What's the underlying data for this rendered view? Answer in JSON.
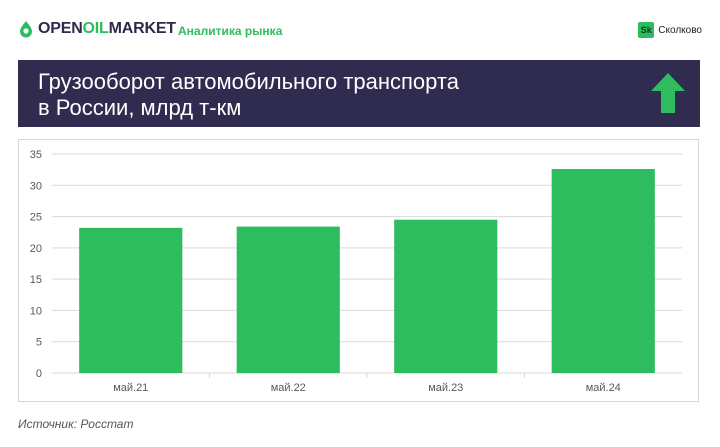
{
  "header": {
    "logo_prefix": "OPEN",
    "logo_accent": "OIL",
    "logo_suffix": "MARKET",
    "subtitle": "Аналитика рынка",
    "partner_badge": "Sk",
    "partner_name": "Сколково"
  },
  "banner": {
    "title_line1": "Грузооборот автомобильного транспорта",
    "title_line2": "в России, млрд т-км",
    "trend_icon": "arrow-up-icon"
  },
  "source": "Источник: Росстат",
  "colors": {
    "accent": "#2dbd5e",
    "banner_bg": "#302c50",
    "bar": "#2dbd5e",
    "grid": "#d9d9d9"
  },
  "chart_data": {
    "type": "bar",
    "categories": [
      "май.21",
      "май.22",
      "май.23",
      "май.24"
    ],
    "values": [
      23.2,
      23.4,
      24.5,
      32.6
    ],
    "title": "",
    "xlabel": "",
    "ylabel": "",
    "ylim": [
      0,
      35
    ],
    "yticks": [
      0,
      5,
      10,
      15,
      20,
      25,
      30,
      35
    ],
    "grid": true,
    "legend": "none"
  }
}
